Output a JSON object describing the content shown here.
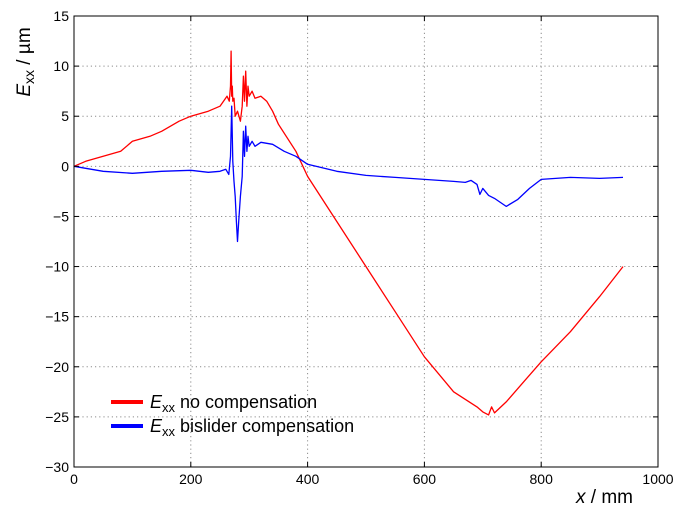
{
  "chart_data": {
    "type": "line",
    "xlabel": {
      "var": "x",
      "unit": " / mm"
    },
    "ylabel": {
      "var": "E",
      "sub": "xx",
      "unit": " / µm"
    },
    "xlim": [
      0,
      1000
    ],
    "ylim": [
      -30,
      15
    ],
    "xticks": [
      0,
      200,
      400,
      600,
      800,
      1000
    ],
    "yticks": [
      15,
      10,
      5,
      0,
      -5,
      -10,
      -15,
      -20,
      -25,
      -30
    ],
    "xtick_labels": [
      "0",
      "200",
      "400",
      "600",
      "800",
      "1000"
    ],
    "ytick_labels": [
      "15",
      "10",
      "5",
      "0",
      "−5",
      "−10",
      "−15",
      "−20",
      "−25",
      "−30"
    ],
    "grid": true,
    "legend": "lower-left",
    "series": [
      {
        "name_var": "E",
        "name_sub": "xx",
        "name_rest": " no compensation",
        "color": "#ff0000",
        "x": [
          0,
          20,
          50,
          80,
          100,
          130,
          150,
          180,
          200,
          230,
          250,
          262,
          266,
          268,
          269,
          270,
          271,
          272,
          274,
          276,
          280,
          285,
          288,
          290,
          292,
          294,
          296,
          298,
          300,
          305,
          310,
          320,
          330,
          340,
          350,
          380,
          400,
          450,
          500,
          550,
          600,
          650,
          690,
          700,
          710,
          715,
          720,
          740,
          770,
          800,
          850,
          900,
          940
        ],
        "y": [
          0,
          0.5,
          1.0,
          1.5,
          2.5,
          3.0,
          3.5,
          4.5,
          5.0,
          5.5,
          6.0,
          7.0,
          6.5,
          8.0,
          11.5,
          7.0,
          8.0,
          6.5,
          6.8,
          5.0,
          5.5,
          4.5,
          6.0,
          9.0,
          6.5,
          9.5,
          6.0,
          8.0,
          7.0,
          7.5,
          6.8,
          7.0,
          6.5,
          5.5,
          4.2,
          1.5,
          -1.0,
          -5.5,
          -10.0,
          -14.5,
          -19.0,
          -22.5,
          -24.0,
          -24.5,
          -24.8,
          -24.0,
          -24.6,
          -23.5,
          -21.5,
          -19.5,
          -16.5,
          -13.0,
          -10.0
        ]
      },
      {
        "name_var": "E",
        "name_sub": "xx",
        "name_rest": " bislider compensation",
        "color": "#0000ff",
        "x": [
          0,
          50,
          100,
          150,
          200,
          230,
          250,
          260,
          265,
          268,
          270,
          272,
          274,
          276,
          278,
          280,
          282,
          285,
          288,
          290,
          292,
          294,
          296,
          298,
          300,
          305,
          310,
          320,
          340,
          360,
          380,
          400,
          450,
          500,
          550,
          600,
          650,
          670,
          680,
          690,
          695,
          700,
          710,
          720,
          740,
          760,
          780,
          800,
          850,
          900,
          940
        ],
        "y": [
          0,
          -0.5,
          -0.7,
          -0.5,
          -0.4,
          -0.6,
          -0.5,
          -0.3,
          -0.8,
          1.0,
          6.0,
          0.5,
          -1.5,
          -3.0,
          -5.5,
          -7.5,
          -5.5,
          -3.0,
          -1.0,
          3.5,
          1.0,
          4.0,
          1.5,
          3.0,
          2.0,
          2.5,
          2.0,
          2.4,
          2.2,
          1.5,
          1.0,
          0.2,
          -0.5,
          -0.9,
          -1.1,
          -1.3,
          -1.5,
          -1.6,
          -1.4,
          -1.8,
          -2.8,
          -2.2,
          -2.9,
          -3.2,
          -4.0,
          -3.3,
          -2.2,
          -1.3,
          -1.1,
          -1.2,
          -1.1
        ]
      }
    ]
  }
}
